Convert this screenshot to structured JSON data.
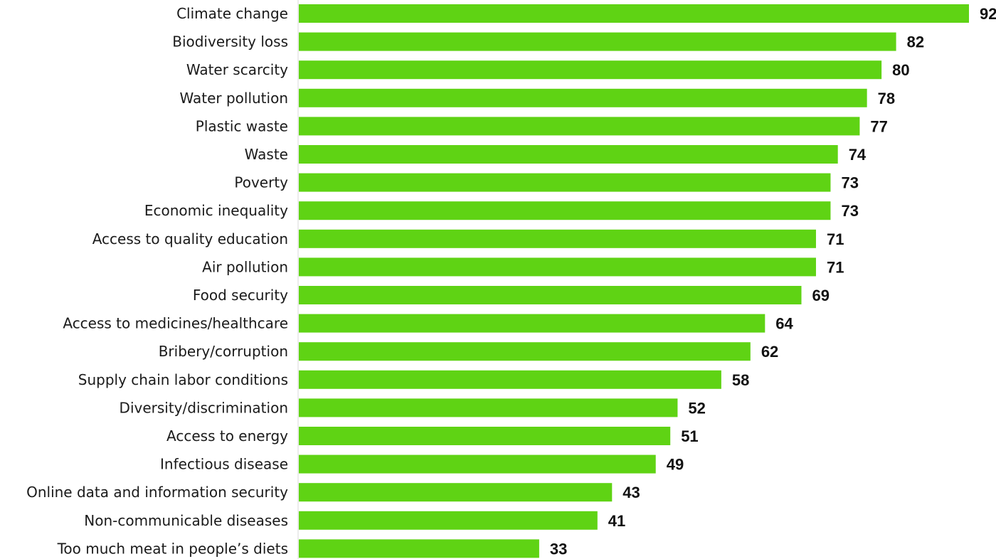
{
  "chart_data": {
    "type": "bar",
    "orientation": "horizontal",
    "title": "",
    "xlabel": "",
    "ylabel": "",
    "categories": [
      "Climate change",
      "Biodiversity loss",
      "Water scarcity",
      "Water pollution",
      "Plastic waste",
      "Waste",
      "Poverty",
      "Economic inequality",
      "Access to quality education",
      "Air pollution",
      "Food security",
      "Access to medicines/healthcare",
      "Bribery/corruption",
      "Supply chain labor conditions",
      "Diversity/discrimination",
      "Access to energy",
      "Infectious disease",
      "Online data and information security",
      "Non-communicable diseases",
      "Too much meat in people’s diets"
    ],
    "values": [
      92,
      82,
      80,
      78,
      77,
      74,
      73,
      73,
      71,
      71,
      69,
      64,
      62,
      58,
      52,
      51,
      49,
      43,
      41,
      33
    ],
    "xlim": [
      0,
      92
    ],
    "grid": false,
    "legend": "none",
    "colors": {
      "bar": "#5fd314",
      "label": "#1a1a1a",
      "value": "#111111"
    }
  }
}
